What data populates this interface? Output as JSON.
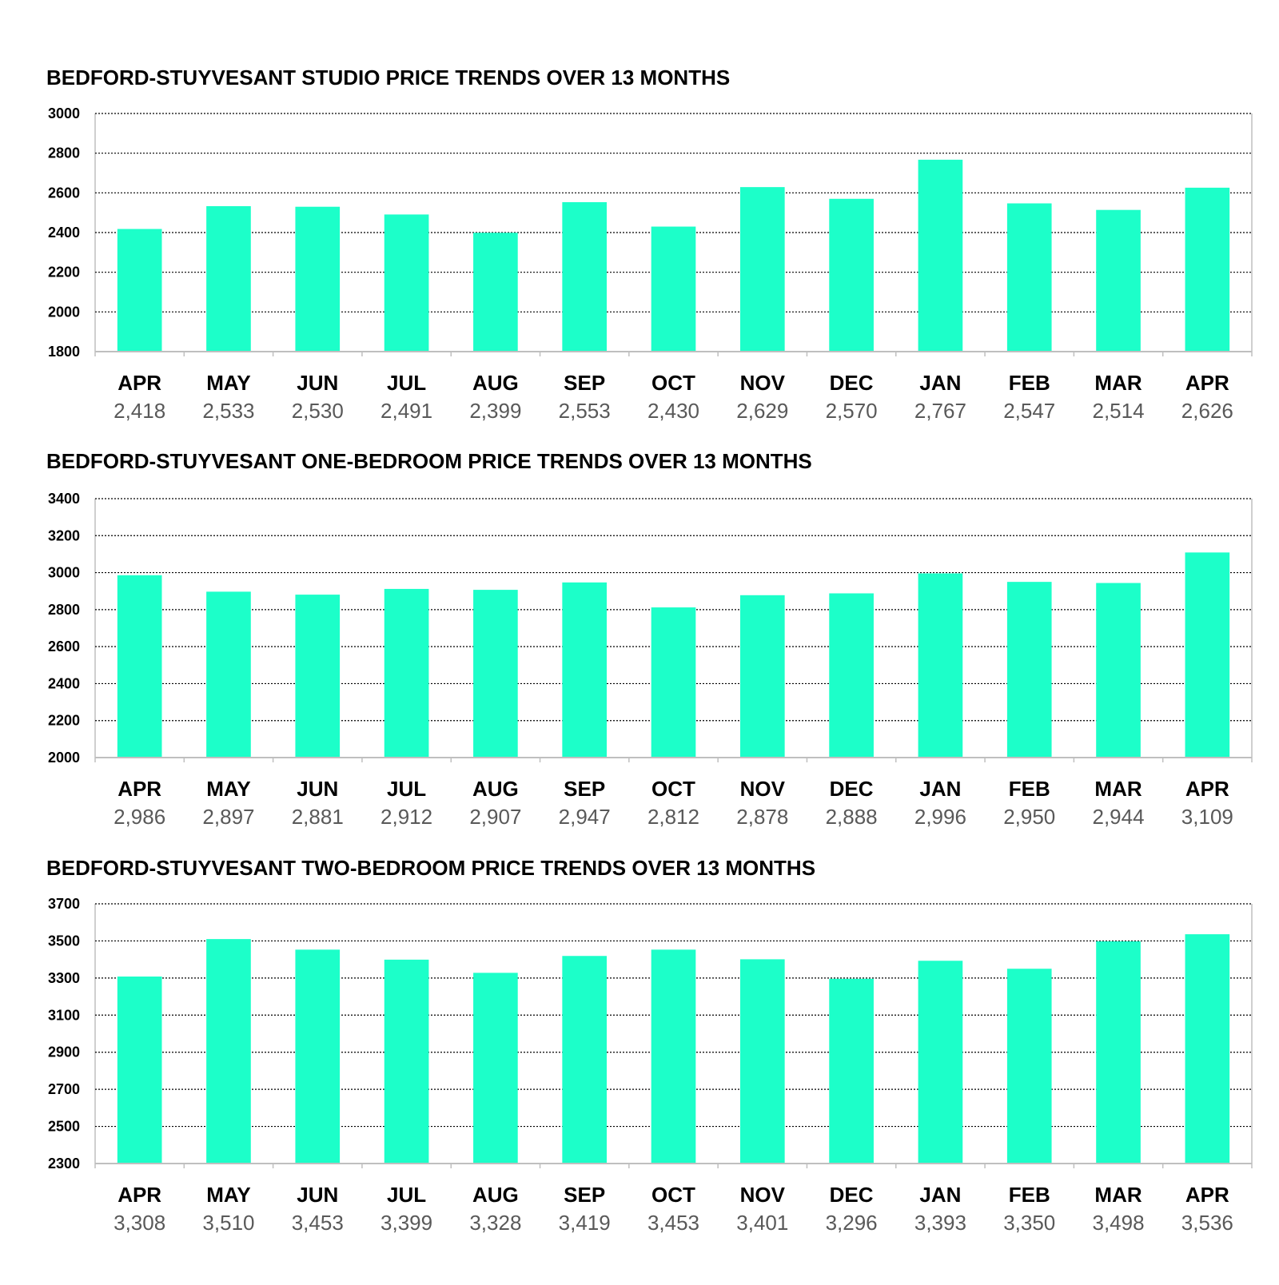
{
  "style": {
    "bar_color": "#1cffc9",
    "grid_color": "#000000",
    "axis_color": "#bfbfbf",
    "value_label_color": "#595959"
  },
  "chart_data": [
    {
      "type": "bar",
      "title": "BEDFORD-STUYVESANT STUDIO PRICE TRENDS OVER 13 MONTHS",
      "categories": [
        "APR",
        "MAY",
        "JUN",
        "JUL",
        "AUG",
        "SEP",
        "OCT",
        "NOV",
        "DEC",
        "JAN",
        "FEB",
        "MAR",
        "APR"
      ],
      "values": [
        2418,
        2533,
        2530,
        2491,
        2399,
        2553,
        2430,
        2629,
        2570,
        2767,
        2547,
        2514,
        2626
      ],
      "value_labels": [
        "2,418",
        "2,533",
        "2,530",
        "2,491",
        "2,399",
        "2,553",
        "2,430",
        "2,629",
        "2,570",
        "2,767",
        "2,547",
        "2,514",
        "2,626"
      ],
      "ylim": [
        1800,
        3000
      ],
      "yticks": [
        1800,
        2000,
        2200,
        2400,
        2600,
        2800,
        3000
      ],
      "grid": "dotted horizontal",
      "xlabel": "",
      "ylabel": ""
    },
    {
      "type": "bar",
      "title": "BEDFORD-STUYVESANT ONE-BEDROOM PRICE TRENDS OVER 13 MONTHS",
      "categories": [
        "APR",
        "MAY",
        "JUN",
        "JUL",
        "AUG",
        "SEP",
        "OCT",
        "NOV",
        "DEC",
        "JAN",
        "FEB",
        "MAR",
        "APR"
      ],
      "values": [
        2986,
        2897,
        2881,
        2912,
        2907,
        2947,
        2812,
        2878,
        2888,
        2996,
        2950,
        2944,
        3109
      ],
      "value_labels": [
        "2,986",
        "2,897",
        "2,881",
        "2,912",
        "2,907",
        "2,947",
        "2,812",
        "2,878",
        "2,888",
        "2,996",
        "2,950",
        "2,944",
        "3,109"
      ],
      "ylim": [
        2000,
        3400
      ],
      "yticks": [
        2000,
        2200,
        2400,
        2600,
        2800,
        3000,
        3200,
        3400
      ],
      "grid": "dotted horizontal",
      "xlabel": "",
      "ylabel": ""
    },
    {
      "type": "bar",
      "title": "BEDFORD-STUYVESANT TWO-BEDROOM PRICE TRENDS OVER 13 MONTHS",
      "categories": [
        "APR",
        "MAY",
        "JUN",
        "JUL",
        "AUG",
        "SEP",
        "OCT",
        "NOV",
        "DEC",
        "JAN",
        "FEB",
        "MAR",
        "APR"
      ],
      "values": [
        3308,
        3510,
        3453,
        3399,
        3328,
        3419,
        3453,
        3401,
        3296,
        3393,
        3350,
        3498,
        3536
      ],
      "value_labels": [
        "3,308",
        "3,510",
        "3,453",
        "3,399",
        "3,328",
        "3,419",
        "3,453",
        "3,401",
        "3,296",
        "3,393",
        "3,350",
        "3,498",
        "3,536"
      ],
      "ylim": [
        2300,
        3700
      ],
      "yticks": [
        2300,
        2500,
        2700,
        2900,
        3100,
        3300,
        3500,
        3700
      ],
      "grid": "dotted horizontal",
      "xlabel": "",
      "ylabel": ""
    }
  ]
}
